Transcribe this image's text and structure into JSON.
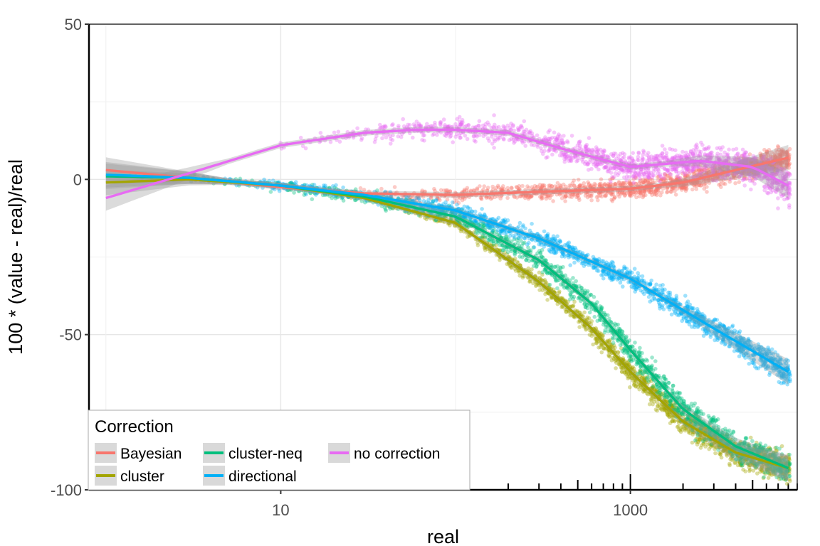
{
  "chart_data": {
    "type": "scatter",
    "title": "",
    "xlabel": "real",
    "ylabel": "100 * (value - real)/real",
    "x_scale": "log10",
    "xlim": [
      0.8,
      9000
    ],
    "ylim": [
      -100,
      50
    ],
    "x_ticks": [
      10,
      1000
    ],
    "x_tick_labels": [
      "10",
      "1000"
    ],
    "y_ticks": [
      50,
      0,
      -50,
      -100
    ],
    "y_tick_labels": [
      "50",
      "0",
      "-50",
      "-100"
    ],
    "grid": true,
    "rug": true,
    "legend": {
      "title": "Correction",
      "position": "bottom-left"
    },
    "colors": {
      "Bayesian": "#F8766D",
      "cluster": "#A3A500",
      "cluster-neq": "#00BF7D",
      "directional": "#00B0F6",
      "no correction": "#E76BF3"
    },
    "series": [
      {
        "name": "Bayesian",
        "smooth_x": [
          1,
          3,
          10,
          30,
          100,
          300,
          1000,
          2000,
          4000,
          8000
        ],
        "smooth_y": [
          3,
          0.5,
          -2.5,
          -4.5,
          -5,
          -4,
          -3,
          -1,
          3,
          7
        ]
      },
      {
        "name": "cluster",
        "smooth_x": [
          1,
          3,
          10,
          30,
          100,
          300,
          600,
          1000,
          2000,
          4000,
          8000
        ],
        "smooth_y": [
          -1,
          0,
          -2,
          -6,
          -14,
          -33,
          -48,
          -62,
          -78,
          -88,
          -93
        ]
      },
      {
        "name": "cluster-neq",
        "smooth_x": [
          1,
          3,
          10,
          30,
          100,
          300,
          600,
          1000,
          2000,
          4000,
          8000
        ],
        "smooth_y": [
          1,
          0.5,
          -2,
          -5.5,
          -12,
          -26,
          -40,
          -55,
          -74,
          -86,
          -93
        ]
      },
      {
        "name": "directional",
        "smooth_x": [
          1,
          3,
          10,
          30,
          100,
          300,
          1000,
          3000,
          8000
        ],
        "smooth_y": [
          1.5,
          0.5,
          -2,
          -5,
          -10,
          -19,
          -32,
          -48,
          -62
        ]
      },
      {
        "name": "no correction",
        "smooth_x": [
          1,
          3,
          10,
          30,
          60,
          100,
          200,
          400,
          1000,
          2500,
          5000,
          8000
        ],
        "smooth_y": [
          -6,
          2,
          11,
          15,
          16,
          16,
          15,
          10,
          4,
          6,
          4,
          -2
        ]
      }
    ]
  }
}
